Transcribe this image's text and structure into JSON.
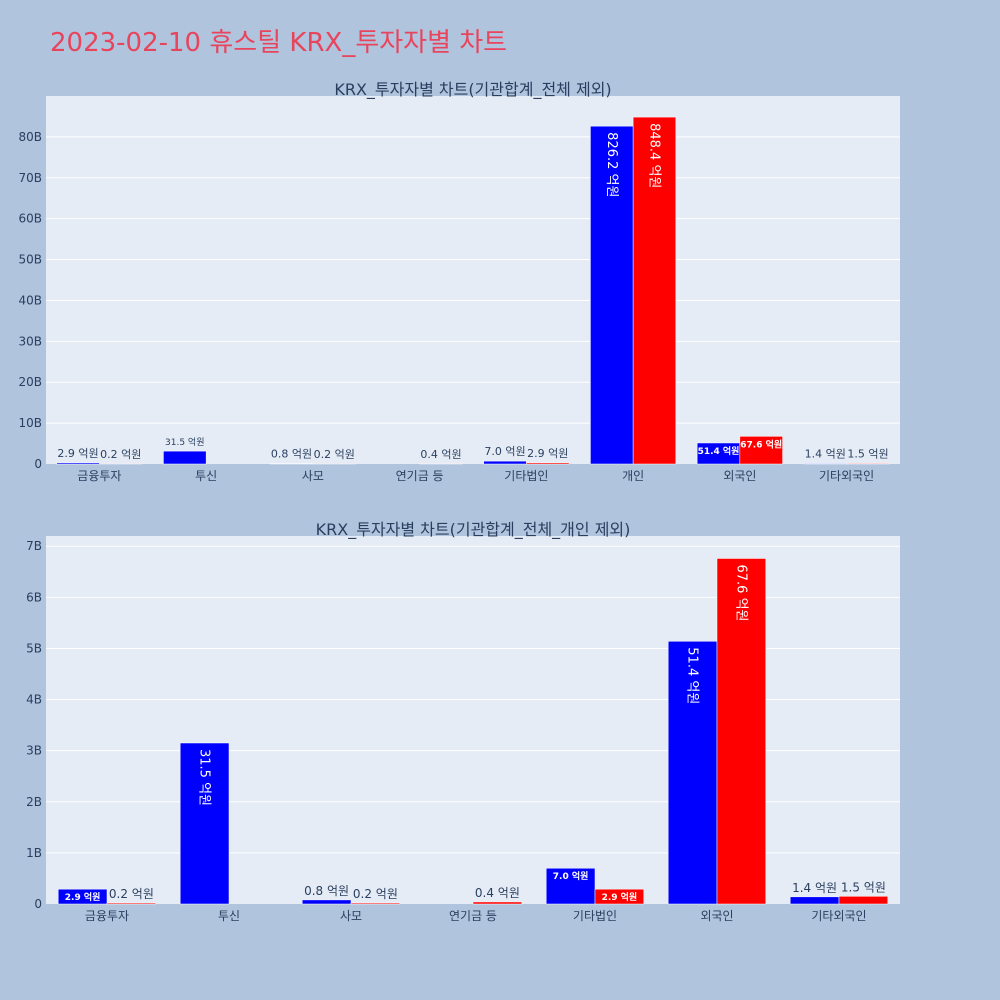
{
  "page": {
    "title": "2023-02-10 휴스틸 KRX_투자자별 차트"
  },
  "colors": {
    "buy": "#0000ff",
    "sell": "#ff0000",
    "plot_bg": "#e5ecf6",
    "page_bg": "#b0c4de",
    "title": "#e8455d"
  },
  "chart_data": [
    {
      "type": "bar",
      "title": "KRX_투자자별 차트(기관합계_전체 제외)",
      "categories": [
        "금융투자",
        "투신",
        "사모",
        "연기금 등",
        "기타법인",
        "개인",
        "외국인",
        "기타외국인"
      ],
      "series": [
        {
          "values": [
            0.29,
            3.15,
            0.08,
            0.0,
            0.7,
            82.62,
            5.14,
            0.14
          ],
          "labels": [
            "2.9 억원",
            "31.5 억원",
            "0.8 억원",
            "",
            "7.0 억원",
            "826.2 억원",
            "51.4 억원",
            "1.4 억원"
          ]
        },
        {
          "values": [
            0.02,
            0.0,
            0.02,
            0.04,
            0.29,
            84.84,
            6.76,
            0.15
          ],
          "labels": [
            "0.2 억원",
            "",
            "0.2 억원",
            "0.4 억원",
            "2.9 억원",
            "848.4 억원",
            "67.6 억원",
            "1.5 억원"
          ]
        }
      ],
      "unit": "B",
      "ylim": [
        0,
        90
      ],
      "yticks": [
        0,
        10,
        20,
        30,
        40,
        50,
        60,
        70,
        80
      ],
      "ytick_labels": [
        "0",
        "10B",
        "20B",
        "30B",
        "40B",
        "50B",
        "60B",
        "70B",
        "80B"
      ],
      "grid": true
    },
    {
      "type": "bar",
      "title": "KRX_투자자별 차트(기관합계_전체_개인 제외)",
      "categories": [
        "금융투자",
        "투신",
        "사모",
        "연기금 등",
        "기타법인",
        "외국인",
        "기타외국인"
      ],
      "series": [
        {
          "values": [
            0.29,
            3.15,
            0.08,
            0.0,
            0.7,
            5.14,
            0.14
          ],
          "labels": [
            "2.9 억원",
            "31.5 억원",
            "0.8 억원",
            "",
            "7.0 억원",
            "51.4 억원",
            "1.4 억원"
          ]
        },
        {
          "values": [
            0.02,
            0.0,
            0.02,
            0.04,
            0.29,
            6.76,
            0.15
          ],
          "labels": [
            "0.2 억원",
            "",
            "0.2 억원",
            "0.4 억원",
            "2.9 억원",
            "67.6 억원",
            "1.5 억원"
          ]
        }
      ],
      "unit": "B",
      "ylim": [
        0,
        7.2
      ],
      "yticks": [
        0,
        1,
        2,
        3,
        4,
        5,
        6,
        7
      ],
      "ytick_labels": [
        "0",
        "1B",
        "2B",
        "3B",
        "4B",
        "5B",
        "6B",
        "7B"
      ],
      "grid": true
    }
  ]
}
